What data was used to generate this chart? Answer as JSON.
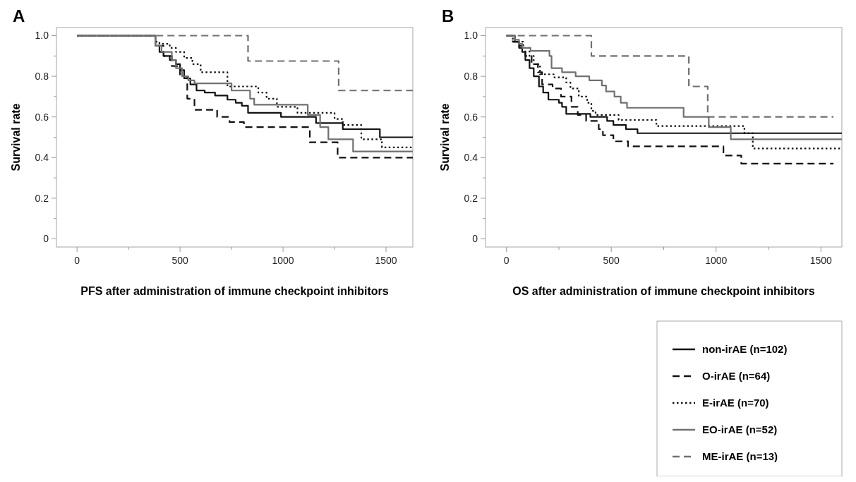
{
  "chart_data": [
    {
      "type": "step",
      "title": "A",
      "xlabel": "PFS after administration of immune checkpoint inhibitors",
      "ylabel": "Survival rate",
      "xlim": [
        -100,
        1630
      ],
      "ylim": [
        -0.04,
        1.04
      ],
      "xticks": [
        0,
        {
          "value": 250,
          "label": null
        },
        500,
        {
          "value": 750,
          "label": null
        },
        1000,
        {
          "value": 1250,
          "label": null
        },
        1500
      ],
      "yticks": [
        {
          "value": 0,
          "label": "0"
        },
        {
          "value": 0.1,
          "label": null
        },
        0.2,
        {
          "value": 0.3,
          "label": null
        },
        0.4,
        {
          "value": 0.5,
          "label": null
        },
        0.6,
        {
          "value": 0.7,
          "label": null
        },
        0.8,
        {
          "value": 0.9,
          "label": null
        },
        {
          "value": 1,
          "label": "1.0"
        }
      ],
      "grid": false,
      "legend": false,
      "marker": "none",
      "series": [
        {
          "color": "#111111",
          "line_style": "solid",
          "x": [
            0,
            380,
            400,
            420,
            450,
            480,
            500,
            520,
            550,
            580,
            620,
            670,
            730,
            770,
            800,
            830,
            990,
            1160,
            1290,
            1470,
            1630
          ],
          "values": [
            1,
            0.95,
            0.92,
            0.9,
            0.88,
            0.86,
            0.83,
            0.79,
            0.76,
            0.73,
            0.72,
            0.705,
            0.685,
            0.67,
            0.655,
            0.62,
            0.6,
            0.57,
            0.54,
            0.5,
            0.5
          ]
        },
        {
          "color": "#111111",
          "line_style": "dashed",
          "x": [
            0,
            380,
            420,
            460,
            500,
            535,
            570,
            680,
            740,
            810,
            1130,
            1265,
            1630
          ],
          "values": [
            1,
            0.95,
            0.9,
            0.85,
            0.8,
            0.69,
            0.635,
            0.6,
            0.575,
            0.55,
            0.475,
            0.4,
            0.4
          ]
        },
        {
          "color": "#111111",
          "line_style": "dotted",
          "x": [
            0,
            380,
            400,
            450,
            480,
            520,
            560,
            600,
            730,
            880,
            920,
            970,
            1070,
            1250,
            1290,
            1380,
            1480,
            1630
          ],
          "values": [
            1,
            0.97,
            0.96,
            0.94,
            0.92,
            0.89,
            0.86,
            0.82,
            0.75,
            0.72,
            0.69,
            0.65,
            0.62,
            0.59,
            0.56,
            0.49,
            0.45,
            0.45
          ]
        },
        {
          "color": "#707070",
          "line_style": "solid",
          "x": [
            0,
            380,
            410,
            460,
            480,
            510,
            540,
            570,
            750,
            840,
            860,
            1120,
            1180,
            1220,
            1340,
            1630
          ],
          "values": [
            1,
            0.95,
            0.92,
            0.88,
            0.84,
            0.8,
            0.78,
            0.765,
            0.73,
            0.69,
            0.66,
            0.61,
            0.55,
            0.49,
            0.43,
            0.43
          ]
        },
        {
          "color": "#707070",
          "line_style": "dashed",
          "x": [
            0,
            830,
            1270,
            1630
          ],
          "values": [
            1,
            0.875,
            0.73,
            0.73
          ]
        }
      ]
    },
    {
      "type": "step",
      "title": "B",
      "xlabel": "OS after administration of immune checkpoint inhibitors",
      "ylabel": "Survival rate",
      "xlim": [
        -100,
        1600
      ],
      "ylim": [
        -0.04,
        1.04
      ],
      "xticks": [
        0,
        {
          "value": 250,
          "label": null
        },
        500,
        {
          "value": 750,
          "label": null
        },
        1000,
        {
          "value": 1250,
          "label": null
        },
        1500
      ],
      "yticks": [
        {
          "value": 0,
          "label": "0"
        },
        {
          "value": 0.1,
          "label": null
        },
        0.2,
        {
          "value": 0.3,
          "label": null
        },
        0.4,
        {
          "value": 0.5,
          "label": null
        },
        0.6,
        {
          "value": 0.7,
          "label": null
        },
        0.8,
        {
          "value": 0.9,
          "label": null
        },
        {
          "value": 1,
          "label": "1.0"
        }
      ],
      "grid": false,
      "legend": "bottom right",
      "marker": "none",
      "series": [
        {
          "name": "non-irAE (n=102)",
          "color": "#111111",
          "line_style": "solid",
          "x": [
            0,
            40,
            60,
            75,
            90,
            110,
            130,
            155,
            175,
            200,
            250,
            265,
            285,
            400,
            480,
            510,
            570,
            625,
            1600
          ],
          "values": [
            1,
            0.97,
            0.95,
            0.92,
            0.88,
            0.84,
            0.8,
            0.75,
            0.72,
            0.685,
            0.67,
            0.65,
            0.615,
            0.6,
            0.58,
            0.56,
            0.54,
            0.52,
            0.52
          ]
        },
        {
          "name": "O-irAE (n=64)",
          "color": "#111111",
          "line_style": "dashed",
          "x": [
            0,
            30,
            60,
            90,
            120,
            150,
            170,
            220,
            260,
            310,
            340,
            380,
            440,
            460,
            510,
            580,
            1035,
            1120,
            1560
          ],
          "values": [
            1,
            0.97,
            0.94,
            0.9,
            0.86,
            0.82,
            0.76,
            0.74,
            0.7,
            0.65,
            0.61,
            0.58,
            0.54,
            0.51,
            0.48,
            0.455,
            0.41,
            0.37,
            0.37
          ]
        },
        {
          "name": "E-irAE (n=70)",
          "color": "#111111",
          "line_style": "dotted",
          "x": [
            0,
            30,
            80,
            110,
            130,
            160,
            225,
            285,
            305,
            345,
            385,
            405,
            425,
            535,
            715,
            1135,
            1175,
            1600
          ],
          "values": [
            1,
            0.97,
            0.94,
            0.9,
            0.86,
            0.81,
            0.795,
            0.77,
            0.74,
            0.7,
            0.67,
            0.63,
            0.61,
            0.585,
            0.555,
            0.52,
            0.445,
            0.445
          ]
        },
        {
          "name": "EO-irAE (n=52)",
          "color": "#707070",
          "line_style": "solid",
          "x": [
            0,
            40,
            60,
            75,
            115,
            205,
            215,
            265,
            330,
            395,
            455,
            475,
            515,
            545,
            575,
            845,
            965,
            1070,
            1600
          ],
          "values": [
            1,
            0.98,
            0.96,
            0.94,
            0.925,
            0.9,
            0.84,
            0.82,
            0.8,
            0.78,
            0.755,
            0.725,
            0.7,
            0.67,
            0.645,
            0.6,
            0.55,
            0.49,
            0.49
          ]
        },
        {
          "name": "ME-irAE (n=13)",
          "color": "#707070",
          "line_style": "dashed",
          "x": [
            0,
            405,
            870,
            960,
            1560
          ],
          "values": [
            1,
            0.9,
            0.75,
            0.6,
            0.6
          ]
        }
      ]
    }
  ]
}
